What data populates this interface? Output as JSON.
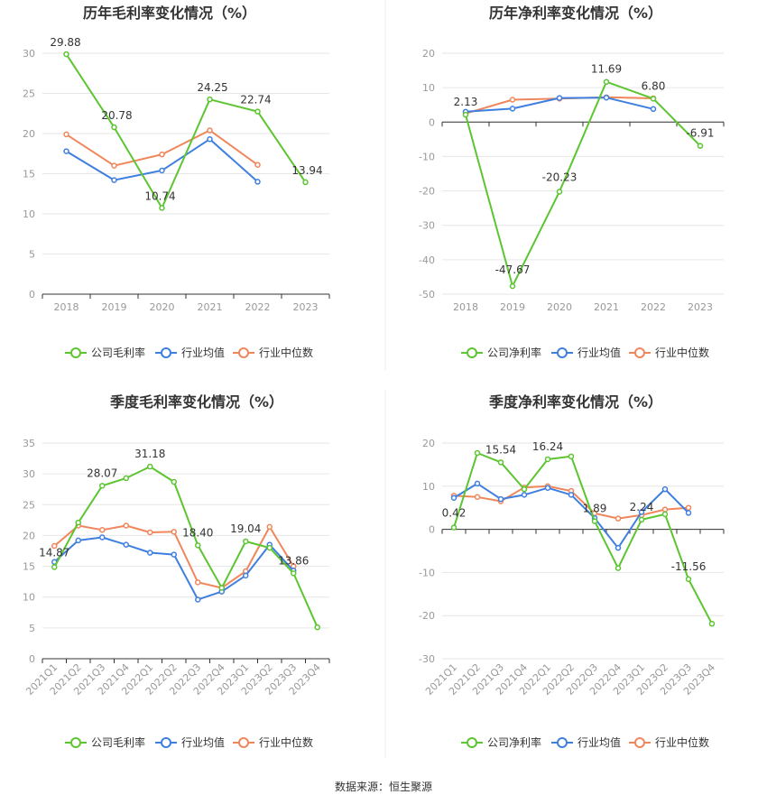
{
  "source": "数据来源：恒生聚源",
  "legend_labels": {
    "gross": [
      "公司毛利率",
      "行业均值",
      "行业中位数"
    ],
    "net": [
      "公司净利率",
      "行业均值",
      "行业中位数"
    ]
  },
  "colors": {
    "company": "#5cc531",
    "mean": "#3f7fe0",
    "median": "#f0865b",
    "grid": "#e6e6e6",
    "axis": "#999999"
  },
  "chart_data": [
    {
      "type": "line",
      "title": "历年毛利率变化情况（%）",
      "categories": [
        "2018",
        "2019",
        "2020",
        "2021",
        "2022",
        "2023"
      ],
      "ylim": [
        0,
        30
      ],
      "yticks": [
        0,
        5,
        10,
        15,
        20,
        25,
        30
      ],
      "legend": "bottom",
      "series": [
        {
          "name": "公司毛利率",
          "values": [
            29.88,
            20.78,
            10.74,
            24.25,
            22.74,
            13.94
          ]
        },
        {
          "name": "行业均值",
          "values": [
            17.8,
            14.2,
            15.4,
            19.3,
            14.0,
            null
          ]
        },
        {
          "name": "行业中位数",
          "values": [
            19.9,
            16.0,
            17.4,
            20.4,
            16.1,
            null
          ]
        }
      ],
      "data_labels": [
        {
          "index": 0,
          "text": "29.88"
        },
        {
          "index": 1,
          "text": "20.78"
        },
        {
          "index": 2,
          "text": "10.74"
        },
        {
          "index": 3,
          "text": "24.25"
        },
        {
          "index": 4,
          "text": "22.74"
        },
        {
          "index": 5,
          "text": "13.94"
        }
      ]
    },
    {
      "type": "line",
      "title": "历年净利率变化情况（%）",
      "categories": [
        "2018",
        "2019",
        "2020",
        "2021",
        "2022",
        "2023"
      ],
      "ylim": [
        -50,
        20
      ],
      "yticks": [
        -50,
        -40,
        -30,
        -20,
        -10,
        0,
        10,
        20
      ],
      "legend": "bottom",
      "series": [
        {
          "name": "公司净利率",
          "values": [
            2.13,
            -47.67,
            -20.23,
            11.69,
            6.8,
            -6.91
          ]
        },
        {
          "name": "行业均值",
          "values": [
            3.0,
            3.9,
            7.0,
            7.1,
            3.8,
            null
          ]
        },
        {
          "name": "行业中位数",
          "values": [
            2.5,
            6.5,
            6.8,
            7.2,
            6.9,
            null
          ]
        }
      ],
      "data_labels": [
        {
          "index": 0,
          "text": "2.13"
        },
        {
          "index": 1,
          "text": "-47.67"
        },
        {
          "index": 2,
          "text": "-20.23"
        },
        {
          "index": 3,
          "text": "11.69"
        },
        {
          "index": 4,
          "text": "6.80"
        },
        {
          "index": 5,
          "text": "-6.91"
        }
      ]
    },
    {
      "type": "line",
      "title": "季度毛利率变化情况（%）",
      "categories": [
        "2021Q1",
        "2021Q2",
        "2021Q3",
        "2021Q4",
        "2022Q1",
        "2022Q2",
        "2022Q3",
        "2022Q4",
        "2023Q1",
        "2023Q2",
        "2023Q3",
        "2023Q4"
      ],
      "ylim": [
        0,
        35
      ],
      "yticks": [
        0,
        5,
        10,
        15,
        20,
        25,
        30,
        35
      ],
      "legend": "bottom",
      "series": [
        {
          "name": "公司毛利率",
          "values": [
            14.87,
            22.1,
            28.07,
            29.3,
            31.18,
            28.7,
            18.4,
            11.5,
            19.04,
            18.0,
            13.86,
            5.1
          ]
        },
        {
          "name": "行业均值",
          "values": [
            15.7,
            19.2,
            19.7,
            18.5,
            17.2,
            16.9,
            9.6,
            10.9,
            13.5,
            18.5,
            14.3,
            null
          ]
        },
        {
          "name": "行业中位数",
          "values": [
            18.3,
            21.6,
            20.9,
            21.6,
            20.5,
            20.6,
            12.4,
            11.5,
            14.2,
            21.4,
            15.0,
            null
          ]
        }
      ],
      "data_labels": [
        {
          "index": 0,
          "text": "14.87"
        },
        {
          "index": 2,
          "text": "28.07"
        },
        {
          "index": 4,
          "text": "31.18"
        },
        {
          "index": 6,
          "text": "18.40"
        },
        {
          "index": 8,
          "text": "19.04"
        },
        {
          "index": 10,
          "text": "13.86"
        }
      ]
    },
    {
      "type": "line",
      "title": "季度净利率变化情况（%）",
      "categories": [
        "2021Q1",
        "2021Q2",
        "2021Q3",
        "2021Q4",
        "2022Q1",
        "2022Q2",
        "2022Q3",
        "2022Q4",
        "2023Q1",
        "2023Q2",
        "2023Q3",
        "2023Q4"
      ],
      "ylim": [
        -30,
        20
      ],
      "yticks": [
        -30,
        -20,
        -10,
        0,
        10,
        20
      ],
      "legend": "bottom",
      "series": [
        {
          "name": "公司净利率",
          "values": [
            0.42,
            17.7,
            15.54,
            9.3,
            16.24,
            16.9,
            1.89,
            -9.0,
            2.24,
            3.5,
            -11.56,
            -21.9
          ]
        },
        {
          "name": "行业均值",
          "values": [
            7.3,
            10.6,
            7.0,
            8.0,
            9.6,
            8.0,
            2.6,
            -4.3,
            4.0,
            9.3,
            3.8,
            null
          ]
        },
        {
          "name": "行业中位数",
          "values": [
            7.8,
            7.5,
            6.5,
            9.7,
            10.0,
            8.9,
            3.7,
            2.5,
            3.3,
            4.6,
            5.0,
            null
          ]
        }
      ],
      "data_labels": [
        {
          "index": 0,
          "text": "0.42"
        },
        {
          "index": 2,
          "text": "15.54"
        },
        {
          "index": 4,
          "text": "16.24"
        },
        {
          "index": 6,
          "text": "1.89"
        },
        {
          "index": 8,
          "text": "2.24"
        },
        {
          "index": 10,
          "text": "-11.56"
        }
      ]
    }
  ]
}
